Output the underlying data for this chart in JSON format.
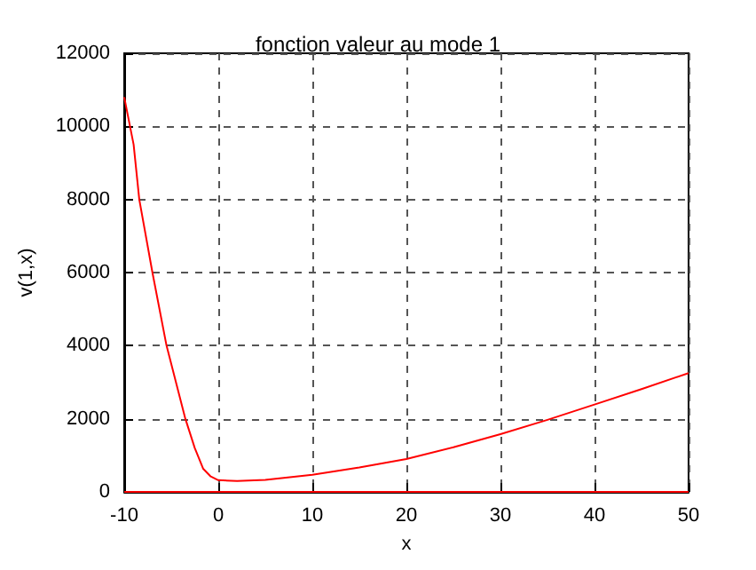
{
  "chart_data": {
    "type": "line",
    "title": "fonction valeur au mode 1",
    "xlabel": "x",
    "ylabel": "v(1,x)",
    "xlim": [
      -10,
      50
    ],
    "xticks": [
      -10,
      0,
      10,
      20,
      30,
      40,
      50
    ],
    "ylim": [
      0,
      12000
    ],
    "yticks": [
      0,
      2000,
      4000,
      6000,
      8000,
      10000,
      12000
    ],
    "grid": true,
    "marker": "none",
    "line_style": "solid",
    "series": [
      {
        "color": "#ff0000",
        "x": [
          -10,
          -9,
          -8.4,
          -7,
          -5.5,
          -3.5,
          -2.5,
          -1.6,
          -0.8,
          0,
          2,
          5,
          10,
          15,
          20,
          25,
          30,
          35,
          40,
          45,
          50
        ],
        "values": [
          10800,
          9500,
          8000,
          6000,
          4000,
          2000,
          1200,
          630,
          420,
          320,
          300,
          330,
          470,
          670,
          900,
          1220,
          1580,
          1970,
          2390,
          2810,
          3250
        ]
      },
      {
        "color": "#ff0000",
        "x": [
          -10,
          50
        ],
        "values": [
          0,
          0
        ]
      }
    ]
  }
}
